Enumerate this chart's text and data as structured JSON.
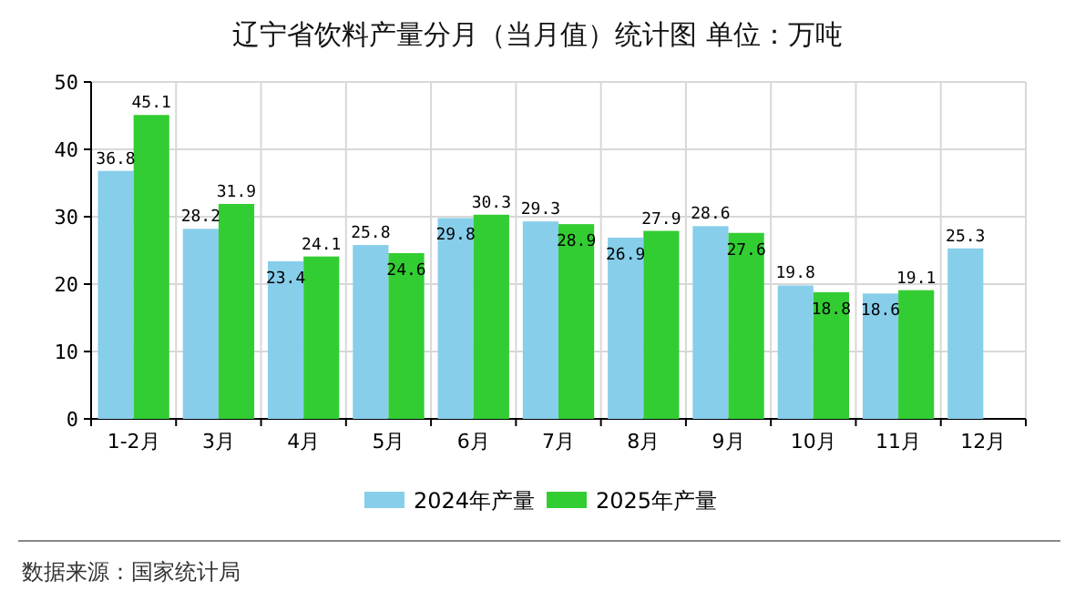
{
  "chart_data": {
    "type": "bar",
    "title": "辽宁省饮料产量分月（当月值）统计图 单位：万吨",
    "categories": [
      "1-2月",
      "3月",
      "4月",
      "5月",
      "6月",
      "7月",
      "8月",
      "9月",
      "10月",
      "11月",
      "12月"
    ],
    "series": [
      {
        "name": "2024年产量",
        "color": "#87ceeb",
        "values": [
          36.8,
          28.2,
          23.4,
          25.8,
          29.8,
          29.3,
          26.9,
          28.6,
          19.8,
          18.6,
          25.3
        ]
      },
      {
        "name": "2025年产量",
        "color": "#32cd32",
        "values": [
          45.1,
          31.9,
          24.1,
          24.6,
          30.3,
          28.9,
          27.9,
          27.6,
          18.8,
          19.1,
          null
        ]
      }
    ],
    "ylim": [
      0,
      50
    ],
    "yticks": [
      0,
      10,
      20,
      30,
      40,
      50
    ],
    "grid": true,
    "legend": "bottom",
    "data_labels": true,
    "annotations": [
      "数据来源：国家统计局"
    ]
  }
}
